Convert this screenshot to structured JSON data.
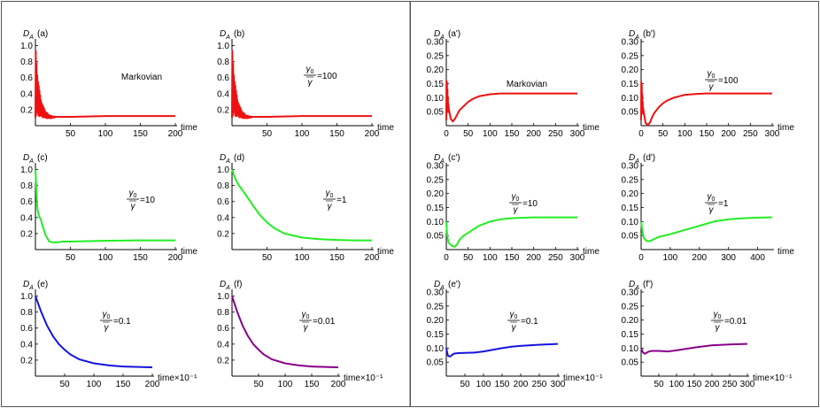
{
  "colors": {
    "red": "#ee1111",
    "green": "#22ee22",
    "blue": "#1414dd",
    "purple": "#880088",
    "frame": "#555555"
  },
  "chart_data": [
    {
      "id": "a",
      "type": "line",
      "title": "(a)",
      "ylabel": "D_A",
      "xlabel": "time",
      "annotation": {
        "kind": "text",
        "text": "Markovian"
      },
      "xlim": [
        0,
        200
      ],
      "ylim": [
        0,
        1.05
      ],
      "xticks": [
        50,
        100,
        150,
        200
      ],
      "yticks": [
        0.2,
        0.4,
        0.6,
        0.8,
        1.0
      ],
      "ytick_decimals": 1,
      "color": "red",
      "series": [
        {
          "name": "D_A",
          "x": [
            0,
            2,
            4,
            6,
            8,
            10,
            15,
            20,
            25,
            30,
            40,
            50,
            75,
            100,
            150,
            200
          ],
          "y": [
            1.0,
            0.75,
            0.55,
            0.42,
            0.33,
            0.26,
            0.17,
            0.13,
            0.115,
            0.11,
            0.11,
            0.11,
            0.115,
            0.12,
            0.12,
            0.12
          ],
          "oscillating": true
        }
      ]
    },
    {
      "id": "b",
      "type": "line",
      "title": "(b)",
      "ylabel": "D_A",
      "xlabel": "time",
      "annotation": {
        "kind": "ratio",
        "num": "γ0",
        "den": "γ",
        "value": "=100"
      },
      "xlim": [
        0,
        200
      ],
      "ylim": [
        0,
        1.05
      ],
      "xticks": [
        50,
        100,
        150,
        200
      ],
      "yticks": [
        0.2,
        0.4,
        0.6,
        0.8,
        1.0
      ],
      "ytick_decimals": 1,
      "color": "red",
      "series": [
        {
          "name": "D_A",
          "x": [
            0,
            2,
            4,
            6,
            8,
            10,
            15,
            20,
            25,
            30,
            40,
            50,
            75,
            100,
            150,
            200
          ],
          "y": [
            1.0,
            0.75,
            0.55,
            0.42,
            0.33,
            0.26,
            0.17,
            0.13,
            0.115,
            0.11,
            0.11,
            0.11,
            0.115,
            0.12,
            0.12,
            0.12
          ],
          "oscillating": true
        }
      ]
    },
    {
      "id": "c",
      "type": "line",
      "title": "(c)",
      "ylabel": "D_A",
      "xlabel": "time",
      "annotation": {
        "kind": "ratio",
        "num": "γ0",
        "den": "γ",
        "value": "=10"
      },
      "xlim": [
        0,
        200
      ],
      "ylim": [
        0,
        1.05
      ],
      "xticks": [
        50,
        100,
        150,
        200
      ],
      "yticks": [
        0.2,
        0.4,
        0.6,
        0.8,
        1.0
      ],
      "ytick_decimals": 1,
      "color": "green",
      "series": [
        {
          "name": "D_A",
          "x": [
            0,
            1,
            2,
            3,
            5,
            8,
            10,
            15,
            20,
            25,
            30,
            40,
            50,
            75,
            100,
            150,
            200
          ],
          "y": [
            1.0,
            0.8,
            0.6,
            0.5,
            0.42,
            0.37,
            0.3,
            0.17,
            0.1,
            0.09,
            0.09,
            0.1,
            0.1,
            0.105,
            0.11,
            0.115,
            0.115
          ],
          "oscillating": false
        }
      ]
    },
    {
      "id": "d",
      "type": "line",
      "title": "(d)",
      "ylabel": "D_A",
      "xlabel": "time",
      "annotation": {
        "kind": "ratio",
        "num": "γ0",
        "den": "γ",
        "value": "=1"
      },
      "xlim": [
        0,
        200
      ],
      "ylim": [
        0,
        1.05
      ],
      "xticks": [
        50,
        100,
        150,
        200
      ],
      "yticks": [
        0.2,
        0.4,
        0.6,
        0.8,
        1.0
      ],
      "ytick_decimals": 1,
      "color": "green",
      "series": [
        {
          "name": "D_A",
          "x": [
            0,
            2,
            5,
            10,
            15,
            20,
            30,
            40,
            50,
            60,
            75,
            100,
            125,
            150,
            175,
            200
          ],
          "y": [
            1.0,
            0.95,
            0.88,
            0.8,
            0.74,
            0.68,
            0.55,
            0.43,
            0.34,
            0.27,
            0.2,
            0.15,
            0.13,
            0.12,
            0.115,
            0.115
          ],
          "oscillating": false
        }
      ]
    },
    {
      "id": "e",
      "type": "line",
      "title": "(e)",
      "ylabel": "D_A",
      "xlabel": "time×10⁻¹",
      "annotation": {
        "kind": "ratio",
        "num": "γ0",
        "den": "γ",
        "value": "=0.1"
      },
      "xlim": [
        0,
        200
      ],
      "ylim": [
        0,
        1.05
      ],
      "xticks": [
        50,
        100,
        150,
        200
      ],
      "yticks": [
        0.2,
        0.4,
        0.6,
        0.8,
        1.0
      ],
      "ytick_decimals": 1,
      "color": "blue",
      "series": [
        {
          "name": "D_A",
          "x": [
            0,
            5,
            10,
            20,
            30,
            40,
            50,
            60,
            75,
            100,
            125,
            150,
            175,
            200
          ],
          "y": [
            1.0,
            0.9,
            0.8,
            0.63,
            0.5,
            0.4,
            0.33,
            0.27,
            0.21,
            0.16,
            0.135,
            0.12,
            0.115,
            0.11
          ],
          "oscillating": false
        }
      ]
    },
    {
      "id": "f",
      "type": "line",
      "title": "(f)",
      "ylabel": "D_A",
      "xlabel": "time×10⁻¹",
      "annotation": {
        "kind": "ratio",
        "num": "γ0",
        "den": "γ",
        "value": "=0.01"
      },
      "xlim": [
        0,
        200
      ],
      "ylim": [
        0,
        1.05
      ],
      "xticks": [
        50,
        100,
        150,
        200
      ],
      "yticks": [
        0.2,
        0.4,
        0.6,
        0.8,
        1.0
      ],
      "ytick_decimals": 1,
      "color": "purple",
      "series": [
        {
          "name": "D_A",
          "x": [
            0,
            5,
            10,
            20,
            30,
            40,
            50,
            60,
            75,
            100,
            125,
            150,
            175,
            200
          ],
          "y": [
            1.0,
            0.9,
            0.8,
            0.63,
            0.5,
            0.4,
            0.33,
            0.27,
            0.21,
            0.16,
            0.135,
            0.12,
            0.115,
            0.11
          ],
          "oscillating": false
        }
      ]
    },
    {
      "id": "a2",
      "type": "line",
      "title": "(a')",
      "ylabel": "D_A",
      "xlabel": "time",
      "annotation": {
        "kind": "text",
        "text": "Markovian"
      },
      "xlim": [
        0,
        300
      ],
      "ylim": [
        0,
        0.3
      ],
      "xticks": [
        0,
        50,
        100,
        150,
        200,
        250,
        300
      ],
      "yticks": [
        0.05,
        0.1,
        0.15,
        0.2,
        0.25,
        0.3
      ],
      "ytick_decimals": 2,
      "color": "red",
      "series": [
        {
          "name": "D_A",
          "x": [
            0,
            3,
            6,
            10,
            15,
            20,
            25,
            30,
            40,
            50,
            60,
            75,
            100,
            125,
            150,
            200,
            250,
            300
          ],
          "y": [
            0.2,
            0.12,
            0.06,
            0.025,
            0.015,
            0.025,
            0.04,
            0.055,
            0.07,
            0.085,
            0.095,
            0.105,
            0.112,
            0.115,
            0.115,
            0.115,
            0.115,
            0.115
          ],
          "oscillating": true,
          "osc_until": 8
        }
      ]
    },
    {
      "id": "b2",
      "type": "line",
      "title": "(b')",
      "ylabel": "D_A",
      "xlabel": "time",
      "annotation": {
        "kind": "ratio",
        "num": "γ0",
        "den": "γ",
        "value": "=100"
      },
      "xlim": [
        0,
        300
      ],
      "ylim": [
        0,
        0.3
      ],
      "xticks": [
        0,
        50,
        100,
        150,
        200,
        250,
        300
      ],
      "yticks": [
        0.05,
        0.1,
        0.15,
        0.2,
        0.25,
        0.3
      ],
      "ytick_decimals": 2,
      "color": "red",
      "series": [
        {
          "name": "D_A",
          "x": [
            0,
            3,
            6,
            10,
            15,
            20,
            25,
            30,
            40,
            50,
            60,
            75,
            100,
            125,
            150,
            200,
            250,
            300
          ],
          "y": [
            0.2,
            0.1,
            0.05,
            0.01,
            0.003,
            0.01,
            0.03,
            0.045,
            0.065,
            0.08,
            0.09,
            0.1,
            0.11,
            0.113,
            0.115,
            0.115,
            0.115,
            0.115
          ],
          "oscillating": true,
          "osc_until": 8
        }
      ]
    },
    {
      "id": "c2",
      "type": "line",
      "title": "(c')",
      "ylabel": "D_A",
      "xlabel": "time",
      "annotation": {
        "kind": "ratio",
        "num": "γ0",
        "den": "γ",
        "value": "=10"
      },
      "xlim": [
        0,
        300
      ],
      "ylim": [
        0,
        0.3
      ],
      "xticks": [
        0,
        50,
        100,
        150,
        200,
        250,
        300
      ],
      "yticks": [
        0.05,
        0.1,
        0.15,
        0.2,
        0.25,
        0.3
      ],
      "ytick_decimals": 2,
      "color": "green",
      "series": [
        {
          "name": "D_A",
          "x": [
            0,
            2,
            5,
            8,
            12,
            15,
            20,
            25,
            30,
            40,
            50,
            60,
            75,
            100,
            125,
            150,
            200,
            250,
            300
          ],
          "y": [
            0.1,
            0.05,
            0.025,
            0.02,
            0.015,
            0.012,
            0.01,
            0.02,
            0.035,
            0.05,
            0.06,
            0.07,
            0.085,
            0.1,
            0.108,
            0.112,
            0.115,
            0.115,
            0.115
          ],
          "oscillating": false
        }
      ]
    },
    {
      "id": "d2",
      "type": "line",
      "title": "(d')",
      "ylabel": "D_A",
      "xlabel": "time",
      "annotation": {
        "kind": "ratio",
        "num": "γ0",
        "den": "γ",
        "value": "=1"
      },
      "xlim": [
        0,
        450
      ],
      "ylim": [
        0,
        0.3
      ],
      "xticks": [
        0,
        100,
        200,
        300,
        400
      ],
      "yticks": [
        0.05,
        0.1,
        0.15,
        0.2,
        0.25,
        0.3
      ],
      "ytick_decimals": 2,
      "color": "green",
      "series": [
        {
          "name": "D_A",
          "x": [
            0,
            5,
            10,
            20,
            30,
            40,
            50,
            60,
            80,
            100,
            150,
            200,
            250,
            300,
            350,
            400,
            450
          ],
          "y": [
            0.1,
            0.06,
            0.04,
            0.03,
            0.03,
            0.035,
            0.04,
            0.045,
            0.05,
            0.055,
            0.07,
            0.085,
            0.1,
            0.108,
            0.112,
            0.114,
            0.115
          ],
          "oscillating": false
        }
      ]
    },
    {
      "id": "e2",
      "type": "line",
      "title": "(e')",
      "ylabel": "D_A",
      "xlabel": "time×10⁻¹",
      "annotation": {
        "kind": "ratio",
        "num": "γ0",
        "den": "γ",
        "value": "=0.1"
      },
      "xlim": [
        0,
        300
      ],
      "ylim": [
        0,
        0.3
      ],
      "xticks": [
        50,
        100,
        150,
        200,
        250,
        300
      ],
      "yticks": [
        0.05,
        0.1,
        0.15,
        0.2,
        0.25,
        0.3
      ],
      "ytick_decimals": 2,
      "color": "blue",
      "series": [
        {
          "name": "D_A",
          "x": [
            0,
            3,
            5,
            10,
            15,
            20,
            30,
            50,
            75,
            100,
            125,
            150,
            175,
            200,
            250,
            300
          ],
          "y": [
            0.1,
            0.08,
            0.072,
            0.07,
            0.075,
            0.08,
            0.082,
            0.083,
            0.084,
            0.088,
            0.094,
            0.1,
            0.105,
            0.108,
            0.112,
            0.115
          ],
          "oscillating": false
        }
      ]
    },
    {
      "id": "f2",
      "type": "line",
      "title": "(f')",
      "ylabel": "D_A",
      "xlabel": "time×10⁻¹",
      "annotation": {
        "kind": "ratio",
        "num": "γ0",
        "den": "γ",
        "value": "=0.01"
      },
      "xlim": [
        0,
        300
      ],
      "ylim": [
        0,
        0.3
      ],
      "xticks": [
        50,
        100,
        150,
        200,
        250,
        300
      ],
      "yticks": [
        0.05,
        0.1,
        0.15,
        0.2,
        0.25,
        0.3
      ],
      "ytick_decimals": 2,
      "color": "purple",
      "series": [
        {
          "name": "D_A",
          "x": [
            0,
            3,
            5,
            10,
            15,
            20,
            30,
            50,
            75,
            100,
            125,
            150,
            175,
            200,
            250,
            300
          ],
          "y": [
            0.1,
            0.09,
            0.085,
            0.08,
            0.083,
            0.087,
            0.09,
            0.09,
            0.088,
            0.092,
            0.097,
            0.102,
            0.106,
            0.11,
            0.113,
            0.115
          ],
          "oscillating": false
        }
      ]
    }
  ]
}
